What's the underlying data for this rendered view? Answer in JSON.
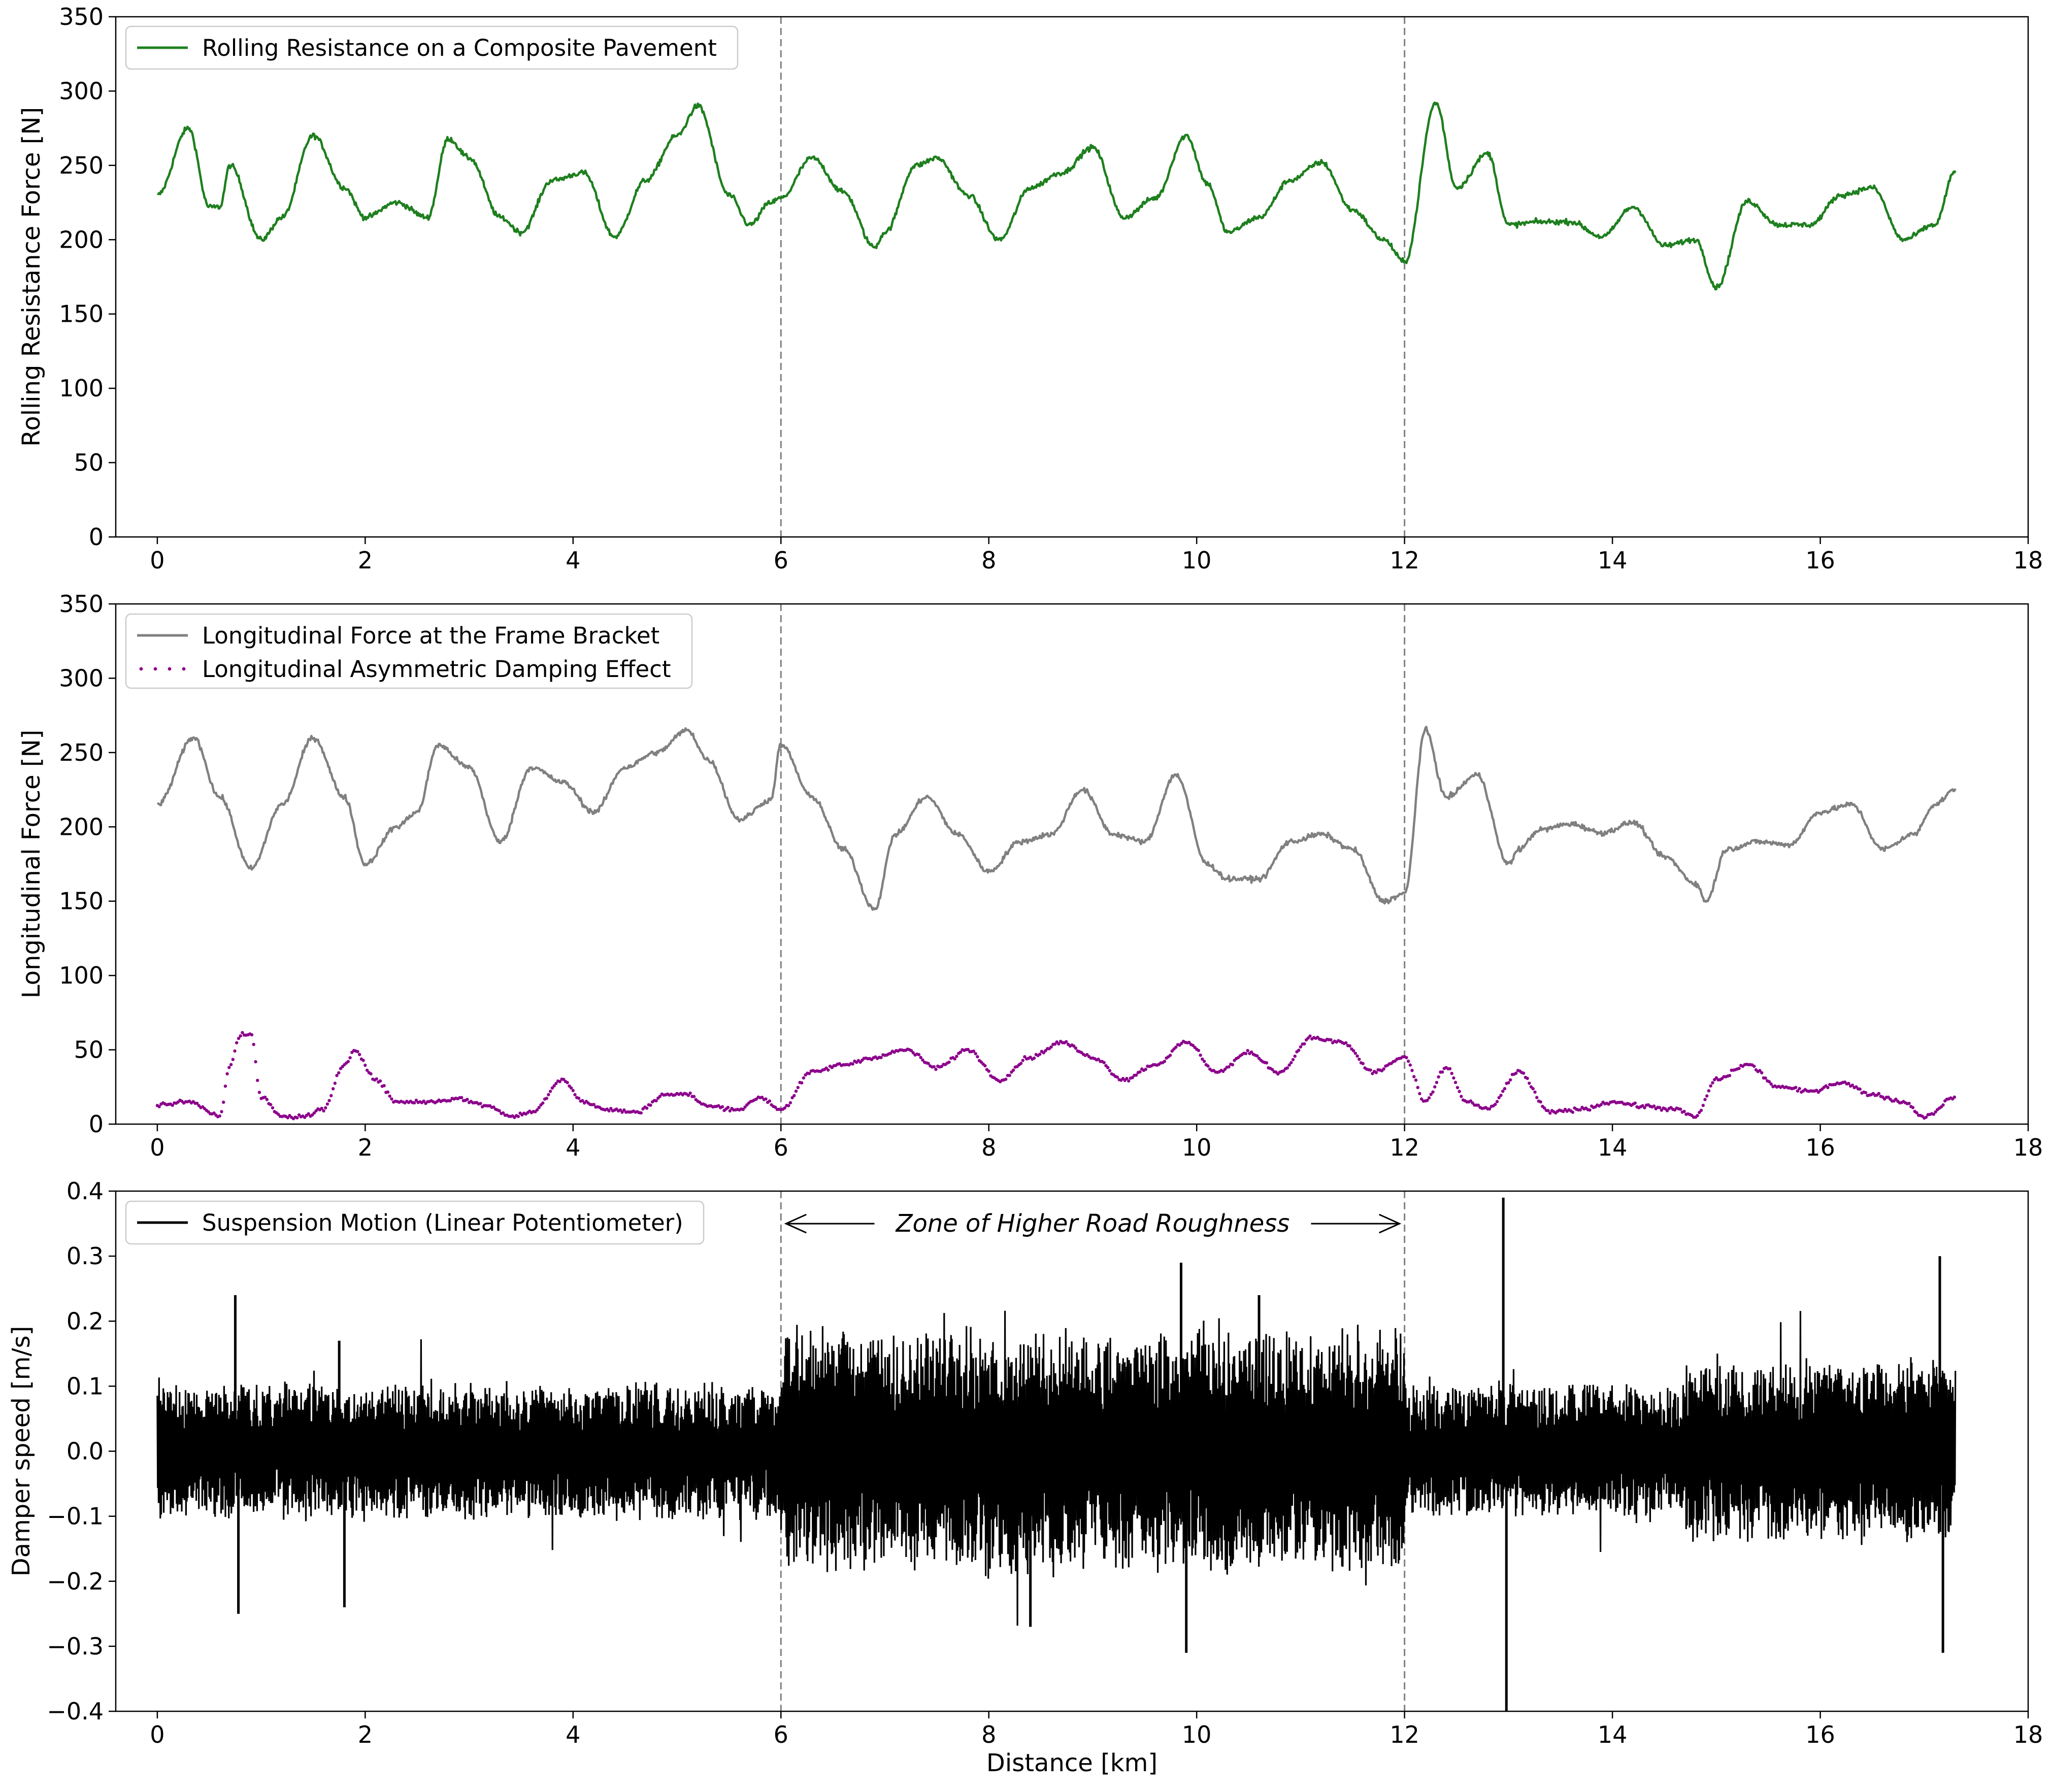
{
  "chart_data": [
    {
      "type": "line",
      "ylabel": "Rolling Resistance Force [N]",
      "xlabel": "",
      "xlim": [
        -0.4,
        18
      ],
      "ylim": [
        0,
        350
      ],
      "xticks": [
        0,
        2,
        4,
        6,
        8,
        10,
        12,
        14,
        16,
        18
      ],
      "yticks": [
        0,
        50,
        100,
        150,
        200,
        250,
        300,
        350
      ],
      "vlines": [
        6,
        12
      ],
      "legend_position": "upper-left",
      "series": [
        {
          "name": "Rolling Resistance on a Composite Pavement",
          "color": "#1e7f1e",
          "style": "solid",
          "x": [
            0,
            0.3,
            0.5,
            0.6,
            0.7,
            1.0,
            1.2,
            1.5,
            1.8,
            2.0,
            2.3,
            2.6,
            2.8,
            3.0,
            3.3,
            3.5,
            3.8,
            4.1,
            4.4,
            4.7,
            5.0,
            5.2,
            5.5,
            5.7,
            5.9,
            6.0,
            6.3,
            6.6,
            6.9,
            7.0,
            7.3,
            7.5,
            7.8,
            8.1,
            8.4,
            8.7,
            9.0,
            9.3,
            9.6,
            9.9,
            10.1,
            10.3,
            10.6,
            10.9,
            11.2,
            11.5,
            11.8,
            12.0,
            12.3,
            12.5,
            12.8,
            13.0,
            13.3,
            13.6,
            13.9,
            14.2,
            14.5,
            14.8,
            15.0,
            15.3,
            15.6,
            15.9,
            16.2,
            16.5,
            16.8,
            17.1,
            17.3
          ],
          "y": [
            230,
            275,
            222,
            222,
            250,
            200,
            215,
            270,
            235,
            215,
            225,
            215,
            268,
            255,
            215,
            205,
            240,
            245,
            202,
            240,
            270,
            290,
            230,
            210,
            225,
            228,
            255,
            232,
            195,
            205,
            250,
            255,
            230,
            200,
            235,
            245,
            262,
            215,
            228,
            270,
            238,
            205,
            215,
            240,
            252,
            220,
            200,
            185,
            292,
            235,
            258,
            210,
            212,
            212,
            202,
            222,
            196,
            200,
            168,
            226,
            210,
            210,
            230,
            235,
            200,
            210,
            246
          ]
        }
      ]
    },
    {
      "type": "line",
      "ylabel": "Longitudinal Force [N]",
      "xlabel": "",
      "xlim": [
        -0.4,
        18
      ],
      "ylim": [
        0,
        350
      ],
      "xticks": [
        0,
        2,
        4,
        6,
        8,
        10,
        12,
        14,
        16,
        18
      ],
      "yticks": [
        0,
        50,
        100,
        150,
        200,
        250,
        300,
        350
      ],
      "vlines": [
        6,
        12
      ],
      "legend_position": "upper-left",
      "series": [
        {
          "name": "Longitudinal Force at the Frame Bracket",
          "color": "#808080",
          "style": "solid",
          "x": [
            0,
            0.35,
            0.6,
            0.9,
            1.2,
            1.5,
            1.8,
            2.0,
            2.3,
            2.5,
            2.7,
            3.0,
            3.3,
            3.6,
            3.9,
            4.2,
            4.5,
            4.8,
            5.1,
            5.3,
            5.6,
            5.9,
            6.0,
            6.3,
            6.6,
            6.9,
            7.1,
            7.4,
            7.7,
            8.0,
            8.3,
            8.6,
            8.9,
            9.2,
            9.5,
            9.8,
            10.1,
            10.3,
            10.6,
            10.9,
            11.2,
            11.5,
            11.8,
            12.0,
            12.2,
            12.4,
            12.7,
            13.0,
            13.1,
            13.3,
            13.6,
            13.9,
            14.2,
            14.5,
            14.8,
            14.9,
            15.1,
            15.4,
            15.7,
            16.0,
            16.3,
            16.6,
            16.9,
            17.1,
            17.3
          ],
          "y": [
            215,
            260,
            220,
            172,
            215,
            260,
            220,
            175,
            200,
            210,
            255,
            240,
            190,
            240,
            230,
            210,
            240,
            250,
            265,
            245,
            205,
            218,
            255,
            220,
            185,
            145,
            195,
            220,
            195,
            170,
            190,
            195,
            225,
            195,
            190,
            235,
            175,
            165,
            165,
            190,
            195,
            185,
            150,
            155,
            265,
            220,
            235,
            175,
            185,
            198,
            202,
            196,
            203,
            180,
            162,
            150,
            185,
            190,
            188,
            210,
            215,
            185,
            195,
            215,
            225
          ]
        },
        {
          "name": "Longitudinal Asymmetric Damping Effect",
          "color": "#8b008b",
          "style": "dotted",
          "x": [
            0,
            0.3,
            0.6,
            0.7,
            0.8,
            0.9,
            1.0,
            1.2,
            1.4,
            1.6,
            1.8,
            1.9,
            2.1,
            2.3,
            2.6,
            2.9,
            3.2,
            3.4,
            3.6,
            3.9,
            4.1,
            4.3,
            4.6,
            4.9,
            5.1,
            5.3,
            5.6,
            5.8,
            6.0,
            6.3,
            6.6,
            6.9,
            7.2,
            7.5,
            7.8,
            8.1,
            8.4,
            8.7,
            9.0,
            9.3,
            9.6,
            9.9,
            10.2,
            10.5,
            10.8,
            11.1,
            11.4,
            11.7,
            12.0,
            12.2,
            12.4,
            12.6,
            12.8,
            13.1,
            13.4,
            13.7,
            14.0,
            14.3,
            14.6,
            14.8,
            15.0,
            15.3,
            15.6,
            15.9,
            16.2,
            16.5,
            16.8,
            17.0,
            17.3
          ],
          "y": [
            13,
            15,
            6,
            40,
            60,
            60,
            18,
            5,
            5,
            10,
            40,
            50,
            30,
            15,
            15,
            17,
            12,
            5,
            8,
            30,
            15,
            10,
            8,
            20,
            20,
            12,
            10,
            18,
            10,
            35,
            40,
            45,
            50,
            38,
            50,
            30,
            45,
            55,
            45,
            30,
            40,
            55,
            35,
            48,
            35,
            58,
            55,
            35,
            45,
            15,
            38,
            15,
            10,
            35,
            8,
            10,
            15,
            12,
            10,
            5,
            30,
            40,
            25,
            22,
            28,
            20,
            15,
            5,
            18
          ]
        }
      ]
    },
    {
      "type": "line",
      "ylabel": "Damper speed [m/s]",
      "xlabel": "Distance [km]",
      "xlim": [
        -0.4,
        18
      ],
      "ylim": [
        -0.4,
        0.4
      ],
      "xticks": [
        0,
        2,
        4,
        6,
        8,
        10,
        12,
        14,
        16,
        18
      ],
      "yticks": [
        -0.4,
        -0.3,
        -0.2,
        -0.1,
        0.0,
        0.1,
        0.2,
        0.3,
        0.4
      ],
      "ytick_labels": [
        "−0.4",
        "−0.3",
        "−0.2",
        "−0.1",
        "0.0",
        "0.1",
        "0.2",
        "0.3",
        "0.4"
      ],
      "vlines": [
        6,
        12
      ],
      "legend_position": "upper-left",
      "annotation": {
        "text": "Zone of Higher Road Roughness",
        "x_start": 6,
        "x_end": 12,
        "y": 0.35
      },
      "series": [
        {
          "name": "Suspension Motion (Linear Potentiometer)",
          "color": "#000000",
          "style": "solid",
          "x_range": [
            0,
            17.3
          ],
          "envelope": [
            {
              "x_from": 0,
              "x_to": 6,
              "amplitude": 0.09
            },
            {
              "x_from": 6,
              "x_to": 12,
              "amplitude": 0.16
            },
            {
              "x_from": 12,
              "x_to": 14.7,
              "amplitude": 0.09
            },
            {
              "x_from": 14.7,
              "x_to": 17.3,
              "amplitude": 0.12
            }
          ],
          "spikes": [
            {
              "x": 0.75,
              "y": 0.24
            },
            {
              "x": 0.78,
              "y": -0.25
            },
            {
              "x": 1.8,
              "y": -0.24
            },
            {
              "x": 1.75,
              "y": 0.17
            },
            {
              "x": 9.85,
              "y": 0.29
            },
            {
              "x": 9.9,
              "y": -0.31
            },
            {
              "x": 10.6,
              "y": 0.24
            },
            {
              "x": 8.4,
              "y": -0.27
            },
            {
              "x": 12.95,
              "y": 0.39
            },
            {
              "x": 12.98,
              "y": -0.4
            },
            {
              "x": 17.15,
              "y": 0.3
            },
            {
              "x": 17.18,
              "y": -0.31
            }
          ]
        }
      ]
    }
  ]
}
